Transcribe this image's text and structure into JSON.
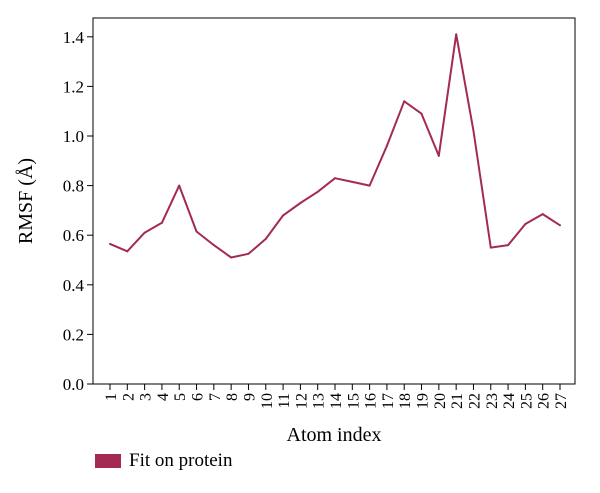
{
  "chart_data": {
    "type": "line",
    "xlabel": "Atom index",
    "ylabel": "RMSF (Å)",
    "ylim": [
      0,
      1.5
    ],
    "yticks": [
      "0.0",
      "0.2",
      "0.4",
      "0.6",
      "0.8",
      "1.0",
      "1.2",
      "1.4"
    ],
    "categories": [
      "1",
      "2",
      "3",
      "4",
      "5",
      "6",
      "7",
      "8",
      "9",
      "10",
      "11",
      "12",
      "13",
      "14",
      "15",
      "16",
      "17",
      "18",
      "19",
      "20",
      "21",
      "22",
      "23",
      "24",
      "25",
      "26",
      "27"
    ],
    "series": [
      {
        "name": "Fit on protein",
        "color": "#a32b53",
        "values": [
          0.565,
          0.535,
          0.61,
          0.65,
          0.8,
          0.615,
          0.56,
          0.51,
          0.525,
          0.585,
          0.68,
          0.73,
          0.775,
          0.83,
          0.815,
          0.8,
          0.96,
          1.14,
          1.09,
          0.92,
          1.41,
          1.02,
          0.55,
          0.56,
          0.645,
          0.685,
          0.64
        ]
      }
    ],
    "legend": "bottom-left",
    "grid": false
  }
}
